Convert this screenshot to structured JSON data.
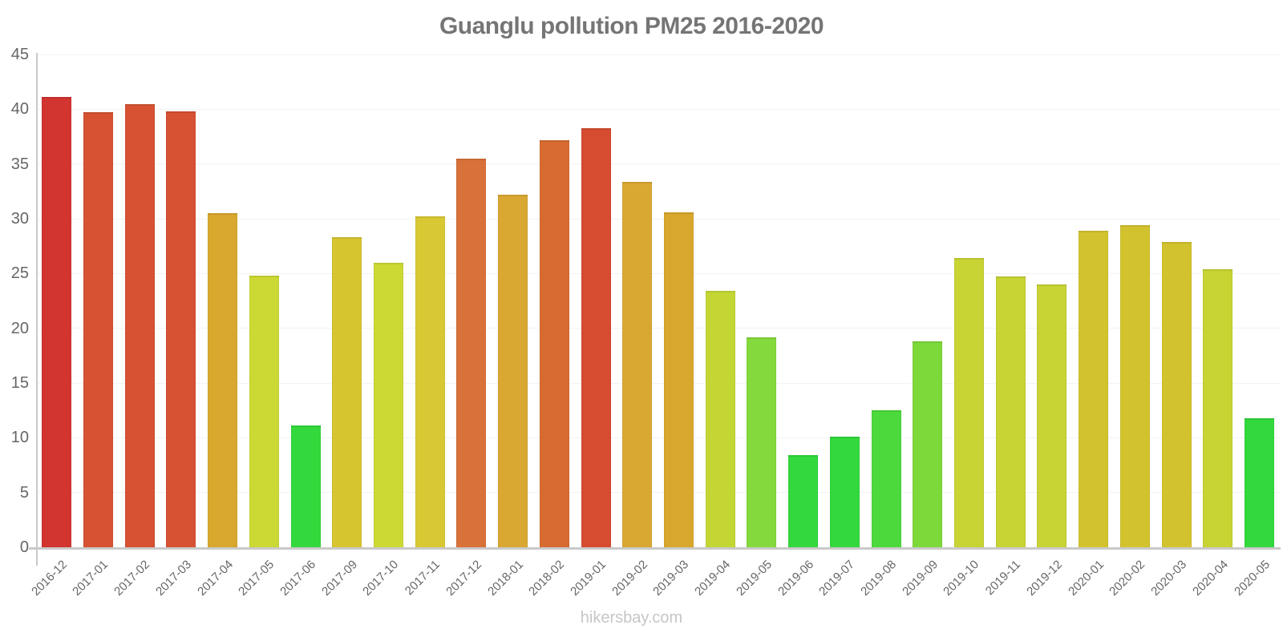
{
  "page": {
    "title": "Guanglu pollution PM25 2016-2020",
    "watermark": "hikersbay.com"
  },
  "chart_data": {
    "type": "bar",
    "title": "Guanglu pollution PM25 2016-2020",
    "xlabel": "",
    "ylabel": "",
    "ylim": [
      0,
      45
    ],
    "yticks": [
      0,
      5,
      10,
      15,
      20,
      25,
      30,
      35,
      40,
      45
    ],
    "grid": "faint-horizontal",
    "legend": "none",
    "color_meaning": "value gradient: green = low pollution, yellow = moderate, orange/red = high",
    "categories": [
      "2016-12",
      "2017-01",
      "2017-02",
      "2017-03",
      "2017-04",
      "2017-05",
      "2017-06",
      "2017-09",
      "2017-10",
      "2017-11",
      "2017-12",
      "2018-01",
      "2018-02",
      "2019-01",
      "2019-02",
      "2019-03",
      "2019-04",
      "2019-05",
      "2019-06",
      "2019-07",
      "2019-08",
      "2019-09",
      "2019-10",
      "2019-11",
      "2019-12",
      "2020-01",
      "2020-02",
      "2020-03",
      "2020-04",
      "2020-05"
    ],
    "series": [
      {
        "name": "PM25",
        "values": [
          41.1,
          39.7,
          40.5,
          39.8,
          30.5,
          24.8,
          11.1,
          28.3,
          26,
          30.2,
          35.5,
          32.2,
          37.2,
          38.3,
          33.4,
          30.6,
          23.4,
          19.2,
          8.4,
          10.1,
          12.5,
          18.8,
          26.4,
          24.7,
          24,
          28.9,
          29.4,
          27.9,
          25.4,
          11.8
        ],
        "colors": [
          "#d23430",
          "#d65233",
          "#d65233",
          "#d65233",
          "#d8a72e",
          "#ccd834",
          "#33d83d",
          "#d6c52f",
          "#ccd834",
          "#d8c934",
          "#d8713a",
          "#d9a833",
          "#d66b31",
          "#d54c31",
          "#d9a833",
          "#d8a72e",
          "#c4d634",
          "#84d93c",
          "#33d83d",
          "#33d83d",
          "#4cd93c",
          "#7dd83a",
          "#c8d334",
          "#c8d334",
          "#c8d334",
          "#d2c32e",
          "#d2c32e",
          "#d2c32e",
          "#c8d334",
          "#33d83d"
        ]
      }
    ]
  },
  "style": {
    "title_color": "#757575",
    "axis_line_color": "#c9c9c9",
    "tick_label_color": "#666666",
    "gridline_color": "#f2f2f2",
    "watermark_color": "#c6c6c6",
    "background": "#ffffff"
  }
}
